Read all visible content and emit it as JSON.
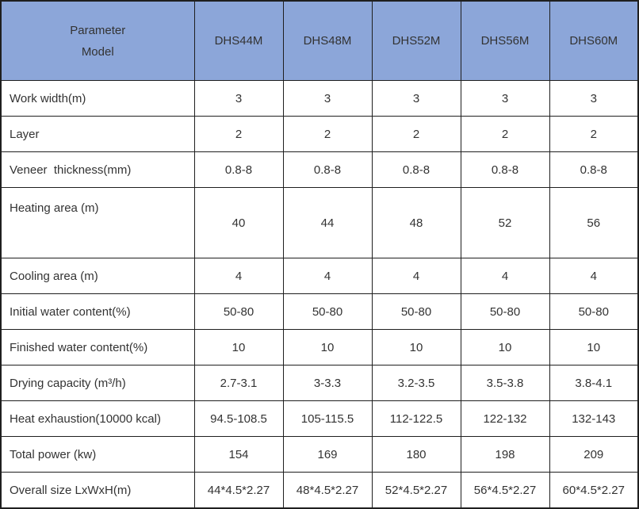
{
  "colors": {
    "header_bg": "#8CA6D9",
    "border": "#1F1F1F",
    "text": "#333333"
  },
  "table": {
    "corner": {
      "line1": "Parameter",
      "line2": "Model"
    },
    "model_headers": [
      "DHS44M",
      "DHS48M",
      "DHS52M",
      "DHS56M",
      "DHS60M"
    ],
    "rows": [
      {
        "label": "Work width(m)",
        "values": [
          "3",
          "3",
          "3",
          "3",
          "3"
        ]
      },
      {
        "label": "Layer",
        "values": [
          "2",
          "2",
          "2",
          "2",
          "2"
        ]
      },
      {
        "label": "Veneer  thickness(mm)",
        "values": [
          "0.8-8",
          "0.8-8",
          "0.8-8",
          "0.8-8",
          "0.8-8"
        ]
      },
      {
        "label": "Heating area (m)",
        "values": [
          "40",
          "44",
          "48",
          "52",
          "56"
        ],
        "tall": true
      },
      {
        "label": "Cooling area (m)",
        "values": [
          "4",
          "4",
          "4",
          "4",
          "4"
        ]
      },
      {
        "label": "Initial water content(%)",
        "values": [
          "50-80",
          "50-80",
          "50-80",
          "50-80",
          "50-80"
        ]
      },
      {
        "label": "Finished water content(%)",
        "values": [
          "10",
          "10",
          "10",
          "10",
          "10"
        ]
      },
      {
        "label": "Drying capacity (m³/h)",
        "values": [
          "2.7-3.1",
          "3-3.3",
          "3.2-3.5",
          "3.5-3.8",
          "3.8-4.1"
        ]
      },
      {
        "label": "Heat exhaustion(10000 kcal)",
        "values": [
          "94.5-108.5",
          "105-115.5",
          "112-122.5",
          "122-132",
          "132-143"
        ]
      },
      {
        "label": "Total power (kw)",
        "values": [
          "154",
          "169",
          "180",
          "198",
          "209"
        ]
      },
      {
        "label": "Overall size LxWxH(m)",
        "values": [
          "44*4.5*2.27",
          "48*4.5*2.27",
          "52*4.5*2.27",
          "56*4.5*2.27",
          "60*4.5*2.27"
        ]
      }
    ]
  }
}
